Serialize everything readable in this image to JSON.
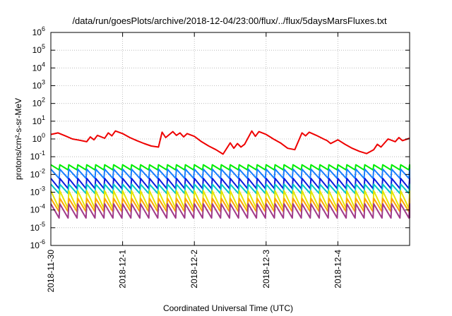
{
  "chart_data": {
    "type": "line",
    "title": "/data/run/goesPlots/archive/2018-12-04/23:00/flux/../flux/5daysMarsFluxes.txt",
    "xlabel": "Coordinated Universal Time (UTC)",
    "ylabel": "protons/cm²-s-sr-MeV",
    "x_tick_labels": [
      "2018-11-30",
      "2018-12-1",
      "2018-12-2",
      "2018-12-3",
      "2018-12-4"
    ],
    "xlim_days": [
      0,
      5
    ],
    "y_scale": "log",
    "ylim": [
      1e-06,
      1000000.0
    ],
    "y_ticks": [
      {
        "base": "10",
        "exp": "-6"
      },
      {
        "base": "10",
        "exp": "-5"
      },
      {
        "base": "10",
        "exp": "-4"
      },
      {
        "base": "10",
        "exp": "-3"
      },
      {
        "base": "10",
        "exp": "-2"
      },
      {
        "base": "10",
        "exp": "-1"
      },
      {
        "base": "10",
        "exp": "0"
      },
      {
        "base": "10",
        "exp": "1"
      },
      {
        "base": "10",
        "exp": "2"
      },
      {
        "base": "10",
        "exp": "3"
      },
      {
        "base": "10",
        "exp": "4"
      },
      {
        "base": "10",
        "exp": "5"
      },
      {
        "base": "10",
        "exp": "6"
      }
    ],
    "grid": true,
    "sawtooth_period_days": 0.125,
    "series": [
      {
        "color": "#ee0000",
        "x": [
          0.0,
          0.1,
          0.2,
          0.3,
          0.4,
          0.5,
          0.55,
          0.6,
          0.65,
          0.75,
          0.8,
          0.85,
          0.9,
          1.0,
          1.1,
          1.2,
          1.3,
          1.4,
          1.5,
          1.55,
          1.6,
          1.7,
          1.75,
          1.8,
          1.85,
          1.9,
          2.0,
          2.1,
          2.2,
          2.3,
          2.4,
          2.5,
          2.55,
          2.6,
          2.65,
          2.7,
          2.8,
          2.85,
          2.9,
          3.0,
          3.1,
          3.2,
          3.3,
          3.4,
          3.5,
          3.55,
          3.6,
          3.7,
          3.8,
          3.85,
          3.9,
          4.0,
          4.1,
          4.2,
          4.3,
          4.4,
          4.5,
          4.55,
          4.6,
          4.7,
          4.8,
          4.85,
          4.9,
          5.0
        ],
        "y": [
          1.8,
          2.2,
          1.5,
          1.0,
          0.85,
          0.7,
          1.3,
          0.9,
          1.6,
          1.1,
          2.2,
          1.5,
          2.8,
          2.0,
          1.2,
          0.8,
          0.55,
          0.4,
          0.35,
          2.4,
          1.2,
          2.6,
          1.6,
          2.2,
          1.3,
          2.0,
          1.4,
          0.7,
          0.4,
          0.25,
          0.14,
          0.6,
          0.3,
          0.55,
          0.35,
          0.5,
          2.8,
          1.4,
          2.6,
          1.8,
          1.0,
          0.6,
          0.3,
          0.25,
          2.2,
          1.5,
          2.4,
          1.6,
          1.0,
          0.8,
          0.55,
          0.9,
          0.5,
          0.3,
          0.2,
          0.15,
          0.25,
          0.5,
          0.35,
          1.0,
          0.7,
          1.2,
          0.8,
          1.1
        ]
      },
      {
        "color": "#00ee00",
        "top": 0.035,
        "trough": 0.018
      },
      {
        "color": "#1a7fff",
        "top": 0.02,
        "trough": 0.006
      },
      {
        "color": "#0a1adf",
        "top": 0.006,
        "trough": 0.0016
      },
      {
        "color": "#00c8c8",
        "top": 0.0028,
        "trough": 0.00085
      },
      {
        "color": "#e6e600",
        "top": 0.0012,
        "trough": 0.00012
      },
      {
        "color": "#ffa500",
        "top": 0.00045,
        "trough": 8e-05
      },
      {
        "color": "#a03a8a",
        "top": 0.00022,
        "trough": 3.5e-05
      }
    ]
  }
}
